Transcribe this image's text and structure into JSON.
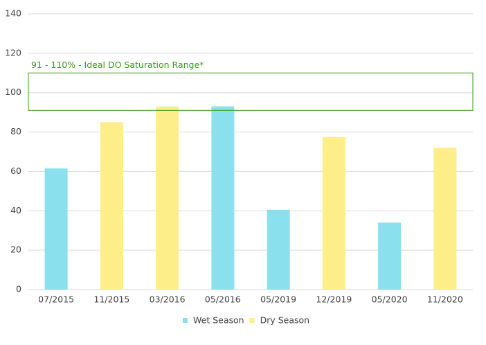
{
  "chart_data": {
    "type": "bar",
    "categories": [
      "07/2015",
      "11/2015",
      "03/2016",
      "05/2016",
      "05/2019",
      "12/2019",
      "05/2020",
      "11/2020"
    ],
    "series": [
      {
        "name": "Wet Season",
        "color": "#8ae0ec",
        "values": [
          61.5,
          null,
          null,
          93,
          40.5,
          null,
          34,
          null
        ]
      },
      {
        "name": "Dry Season",
        "color": "#fdee8a",
        "values": [
          null,
          85,
          93,
          null,
          null,
          77.5,
          null,
          72
        ]
      }
    ],
    "band": {
      "from": 91,
      "to": 110,
      "label": "91 - 110% - Ideal DO Saturation Range*",
      "color": "#3a9a1a"
    },
    "ylim": [
      0,
      140
    ],
    "yticks": [
      0,
      20,
      40,
      60,
      80,
      100,
      120,
      140
    ],
    "grid": true,
    "legend": "bottom"
  }
}
